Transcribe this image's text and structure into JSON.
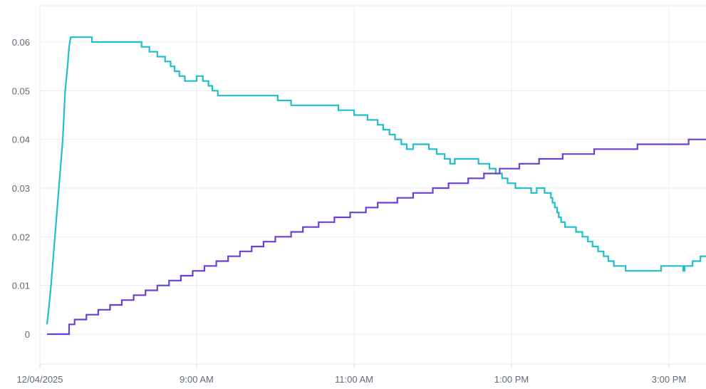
{
  "chart_data": {
    "type": "line",
    "title": "",
    "xlabel": "",
    "ylabel": "",
    "x_tick_labels": [
      "12/04/2025",
      "9:00 AM",
      "11:00 AM",
      "1:00 PM",
      "3:00 PM"
    ],
    "y_tick_labels": [
      "0",
      "0.01",
      "0.02",
      "0.03",
      "0.04",
      "0.05",
      "0.06"
    ],
    "ylim": [
      0,
      0.06
    ],
    "xlim_hours": [
      7.0,
      15.5
    ],
    "grid": true,
    "legend": "none",
    "series": [
      {
        "color": "#1fbfc9",
        "step": true,
        "points": [
          [
            7.1,
            0.002
          ],
          [
            7.12,
            0.005
          ],
          [
            7.15,
            0.01
          ],
          [
            7.2,
            0.02
          ],
          [
            7.25,
            0.03
          ],
          [
            7.3,
            0.04
          ],
          [
            7.33,
            0.05
          ],
          [
            7.36,
            0.055
          ],
          [
            7.38,
            0.059
          ],
          [
            7.4,
            0.061
          ],
          [
            7.67,
            0.06
          ],
          [
            8.3,
            0.059
          ],
          [
            8.4,
            0.058
          ],
          [
            8.5,
            0.057
          ],
          [
            8.6,
            0.056
          ],
          [
            8.67,
            0.055
          ],
          [
            8.72,
            0.054
          ],
          [
            8.78,
            0.053
          ],
          [
            8.85,
            0.052
          ],
          [
            9.0,
            0.053
          ],
          [
            9.08,
            0.052
          ],
          [
            9.15,
            0.051
          ],
          [
            9.2,
            0.05
          ],
          [
            9.27,
            0.049
          ],
          [
            10.03,
            0.048
          ],
          [
            10.2,
            0.047
          ],
          [
            10.8,
            0.046
          ],
          [
            11.0,
            0.045
          ],
          [
            11.17,
            0.044
          ],
          [
            11.3,
            0.043
          ],
          [
            11.37,
            0.042
          ],
          [
            11.45,
            0.041
          ],
          [
            11.52,
            0.04
          ],
          [
            11.6,
            0.039
          ],
          [
            11.67,
            0.038
          ],
          [
            11.75,
            0.039
          ],
          [
            11.95,
            0.038
          ],
          [
            12.05,
            0.037
          ],
          [
            12.15,
            0.036
          ],
          [
            12.22,
            0.035
          ],
          [
            12.28,
            0.036
          ],
          [
            12.58,
            0.035
          ],
          [
            12.72,
            0.034
          ],
          [
            12.8,
            0.033
          ],
          [
            12.88,
            0.032
          ],
          [
            12.95,
            0.031
          ],
          [
            13.05,
            0.03
          ],
          [
            13.25,
            0.029
          ],
          [
            13.32,
            0.03
          ],
          [
            13.42,
            0.029
          ],
          [
            13.5,
            0.028
          ],
          [
            13.52,
            0.027
          ],
          [
            13.55,
            0.026
          ],
          [
            13.58,
            0.025
          ],
          [
            13.6,
            0.024
          ],
          [
            13.63,
            0.023
          ],
          [
            13.68,
            0.022
          ],
          [
            13.82,
            0.021
          ],
          [
            13.9,
            0.02
          ],
          [
            13.97,
            0.019
          ],
          [
            14.03,
            0.018
          ],
          [
            14.1,
            0.017
          ],
          [
            14.17,
            0.016
          ],
          [
            14.23,
            0.015
          ],
          [
            14.3,
            0.014
          ],
          [
            14.45,
            0.013
          ],
          [
            14.9,
            0.014
          ],
          [
            15.18,
            0.013
          ],
          [
            15.2,
            0.014
          ],
          [
            15.3,
            0.015
          ],
          [
            15.4,
            0.016
          ],
          [
            15.5,
            0.016
          ]
        ]
      },
      {
        "color": "#6b3fd4",
        "step": true,
        "points": [
          [
            7.1,
            0.0
          ],
          [
            7.38,
            0.002
          ],
          [
            7.45,
            0.003
          ],
          [
            7.6,
            0.004
          ],
          [
            7.75,
            0.005
          ],
          [
            7.9,
            0.006
          ],
          [
            8.05,
            0.007
          ],
          [
            8.2,
            0.008
          ],
          [
            8.35,
            0.009
          ],
          [
            8.5,
            0.01
          ],
          [
            8.65,
            0.011
          ],
          [
            8.8,
            0.012
          ],
          [
            8.95,
            0.013
          ],
          [
            9.1,
            0.014
          ],
          [
            9.25,
            0.015
          ],
          [
            9.4,
            0.016
          ],
          [
            9.55,
            0.017
          ],
          [
            9.7,
            0.018
          ],
          [
            9.85,
            0.019
          ],
          [
            10.0,
            0.02
          ],
          [
            10.2,
            0.021
          ],
          [
            10.35,
            0.022
          ],
          [
            10.55,
            0.023
          ],
          [
            10.75,
            0.024
          ],
          [
            10.95,
            0.025
          ],
          [
            11.15,
            0.026
          ],
          [
            11.3,
            0.027
          ],
          [
            11.55,
            0.028
          ],
          [
            11.75,
            0.029
          ],
          [
            12.0,
            0.03
          ],
          [
            12.2,
            0.031
          ],
          [
            12.45,
            0.032
          ],
          [
            12.65,
            0.033
          ],
          [
            12.85,
            0.034
          ],
          [
            13.1,
            0.035
          ],
          [
            13.35,
            0.036
          ],
          [
            13.65,
            0.037
          ],
          [
            14.05,
            0.038
          ],
          [
            14.6,
            0.039
          ],
          [
            15.25,
            0.04
          ],
          [
            15.5,
            0.04
          ]
        ]
      }
    ]
  }
}
